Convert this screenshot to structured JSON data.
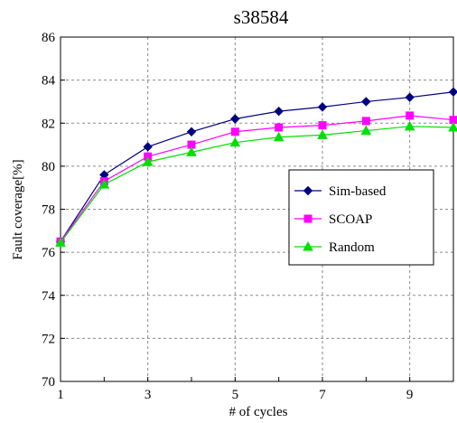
{
  "chart_data": {
    "type": "line",
    "title": "s38584",
    "xlabel": "# of cycles",
    "ylabel": "Fault coverage[%]",
    "x": [
      1,
      2,
      3,
      4,
      5,
      6,
      7,
      8,
      9,
      10
    ],
    "xlim": [
      1,
      10
    ],
    "ylim": [
      70,
      86
    ],
    "xticks": [
      1,
      3,
      5,
      7,
      9
    ],
    "yticks": [
      70,
      72,
      74,
      76,
      78,
      80,
      82,
      84,
      86
    ],
    "grid": "horizontal and vertical dashed",
    "legend_position": "right",
    "series": [
      {
        "name": "Sim-based",
        "color": "#00007f",
        "marker": "diamond",
        "values": [
          76.5,
          79.6,
          80.9,
          81.6,
          82.2,
          82.55,
          82.75,
          83.0,
          83.2,
          83.45
        ]
      },
      {
        "name": "SCOAP",
        "color": "#ff00ff",
        "marker": "square",
        "values": [
          76.5,
          79.3,
          80.45,
          81.0,
          81.6,
          81.8,
          81.9,
          82.1,
          82.35,
          82.15
        ]
      },
      {
        "name": "Random",
        "color": "#00e000",
        "marker": "triangle",
        "values": [
          76.45,
          79.15,
          80.2,
          80.65,
          81.1,
          81.35,
          81.45,
          81.65,
          81.85,
          81.8
        ]
      }
    ]
  }
}
